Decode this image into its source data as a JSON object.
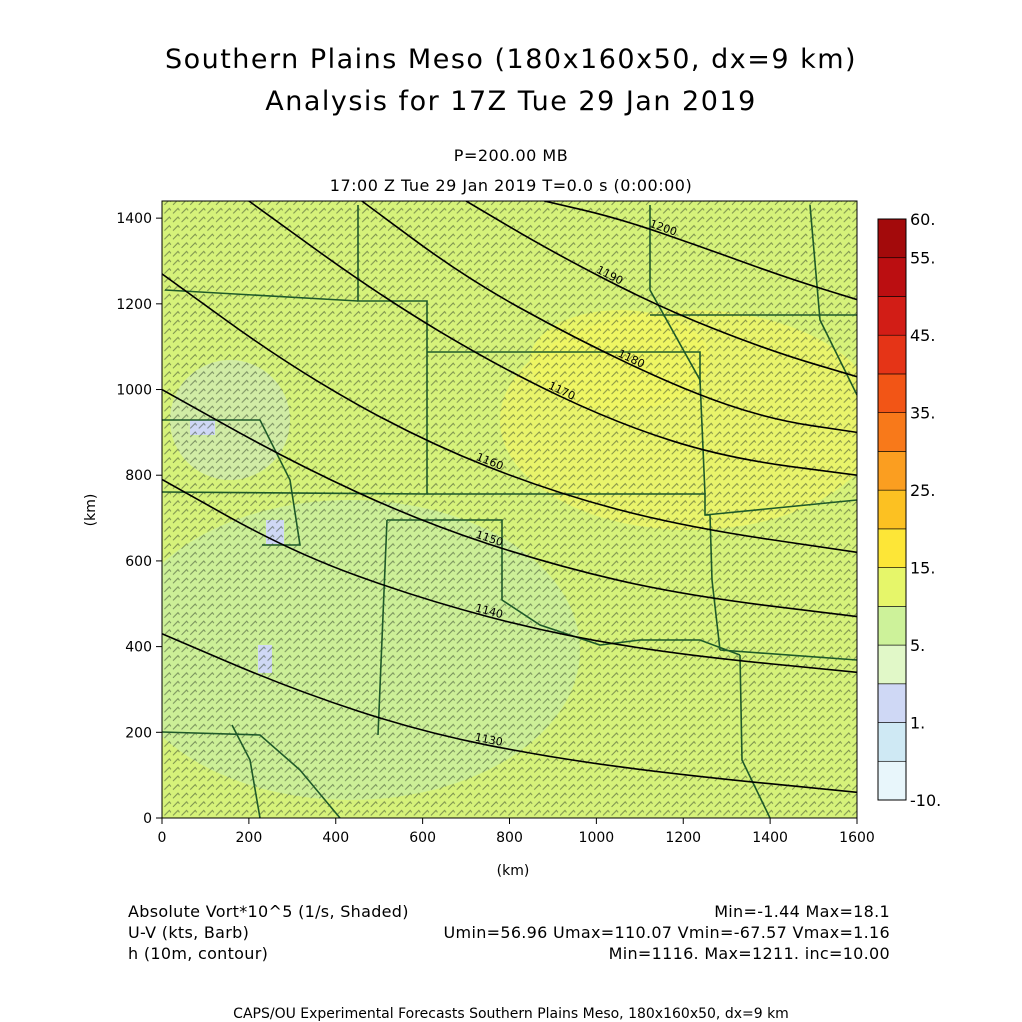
{
  "header": {
    "title_line1": "Southern Plains Meso (180x160x50, dx=9 km)",
    "title_line2": "Analysis for 17Z Tue 29 Jan 2019",
    "pressure": "P=200.00 MB",
    "valid_time": "17:00 Z Tue 29 Jan 2019    T=0.0 s (0:00:00)"
  },
  "legend": {
    "line1_left": "Absolute Vort*10^5 (1/s, Shaded)",
    "line1_right": "Min=-1.44 Max=18.1",
    "line2_left": "U-V (kts, Barb)",
    "line2_right": "Umin=56.96 Umax=110.07 Vmin=-67.57 Vmax=1.16",
    "line3_left": "h (10m, contour)",
    "line3_right": "Min=1116. Max=1211. inc=10.00"
  },
  "footer": "CAPS/OU Experimental Forecasts  Southern Plains Meso, 180x160x50, dx=9 km",
  "colors": {
    "plot_background": "#d6f27a",
    "barb": "#2f3f2a",
    "border": "#1f5a2a",
    "contour": "#000000"
  },
  "chart_data": {
    "type": "heatmap",
    "xlabel": "(km)",
    "ylabel": "(km)",
    "xlim": [
      0,
      1600
    ],
    "ylim": [
      0,
      1440
    ],
    "xticks": [
      0,
      200,
      400,
      600,
      800,
      1000,
      1200,
      1400,
      1600
    ],
    "yticks": [
      0,
      200,
      400,
      600,
      800,
      1000,
      1200,
      1400
    ],
    "colorbar": {
      "levels": [
        -10,
        0,
        1,
        2,
        5,
        10,
        15,
        20,
        25,
        30,
        35,
        40,
        45,
        50,
        55,
        60
      ],
      "labels": [
        "-10.",
        "1.",
        "5.",
        "15.",
        "25.",
        "35.",
        "45.",
        "55.",
        "60."
      ],
      "colors": [
        "#e8f6fb",
        "#cfe9f4",
        "#cfd8f5",
        "#e1f8c8",
        "#cdf29a",
        "#e6f66a",
        "#fde637",
        "#fcc122",
        "#fb9e20",
        "#f8791a",
        "#f25516",
        "#e53417",
        "#d21d16",
        "#bb0e11",
        "#a30a0b"
      ]
    },
    "contours": [
      {
        "label": "1200",
        "points": [
          [
            880,
            1440
          ],
          [
            1050,
            1400
          ],
          [
            1250,
            1330
          ],
          [
            1440,
            1260
          ],
          [
            1600,
            1210
          ]
        ]
      },
      {
        "label": "1190",
        "points": [
          [
            700,
            1440
          ],
          [
            900,
            1320
          ],
          [
            1150,
            1190
          ],
          [
            1400,
            1090
          ],
          [
            1600,
            1030
          ]
        ]
      },
      {
        "label": "1180",
        "points": [
          [
            460,
            1440
          ],
          [
            700,
            1260
          ],
          [
            950,
            1120
          ],
          [
            1200,
            1000
          ],
          [
            1400,
            930
          ],
          [
            1600,
            900
          ]
        ]
      },
      {
        "label": "1170",
        "points": [
          [
            200,
            1440
          ],
          [
            500,
            1220
          ],
          [
            780,
            1050
          ],
          [
            1050,
            920
          ],
          [
            1300,
            840
          ],
          [
            1600,
            800
          ]
        ]
      },
      {
        "label": "1160",
        "points": [
          [
            0,
            1270
          ],
          [
            300,
            1050
          ],
          [
            600,
            880
          ],
          [
            900,
            760
          ],
          [
            1200,
            680
          ],
          [
            1600,
            620
          ]
        ]
      },
      {
        "label": "1150",
        "points": [
          [
            0,
            1000
          ],
          [
            300,
            830
          ],
          [
            600,
            690
          ],
          [
            900,
            590
          ],
          [
            1200,
            520
          ],
          [
            1600,
            470
          ]
        ]
      },
      {
        "label": "1140",
        "points": [
          [
            0,
            790
          ],
          [
            300,
            620
          ],
          [
            600,
            510
          ],
          [
            900,
            430
          ],
          [
            1200,
            380
          ],
          [
            1600,
            340
          ]
        ]
      },
      {
        "label": "1130",
        "points": [
          [
            0,
            430
          ],
          [
            300,
            300
          ],
          [
            600,
            200
          ],
          [
            900,
            140
          ],
          [
            1200,
            100
          ],
          [
            1600,
            60
          ]
        ]
      }
    ]
  }
}
